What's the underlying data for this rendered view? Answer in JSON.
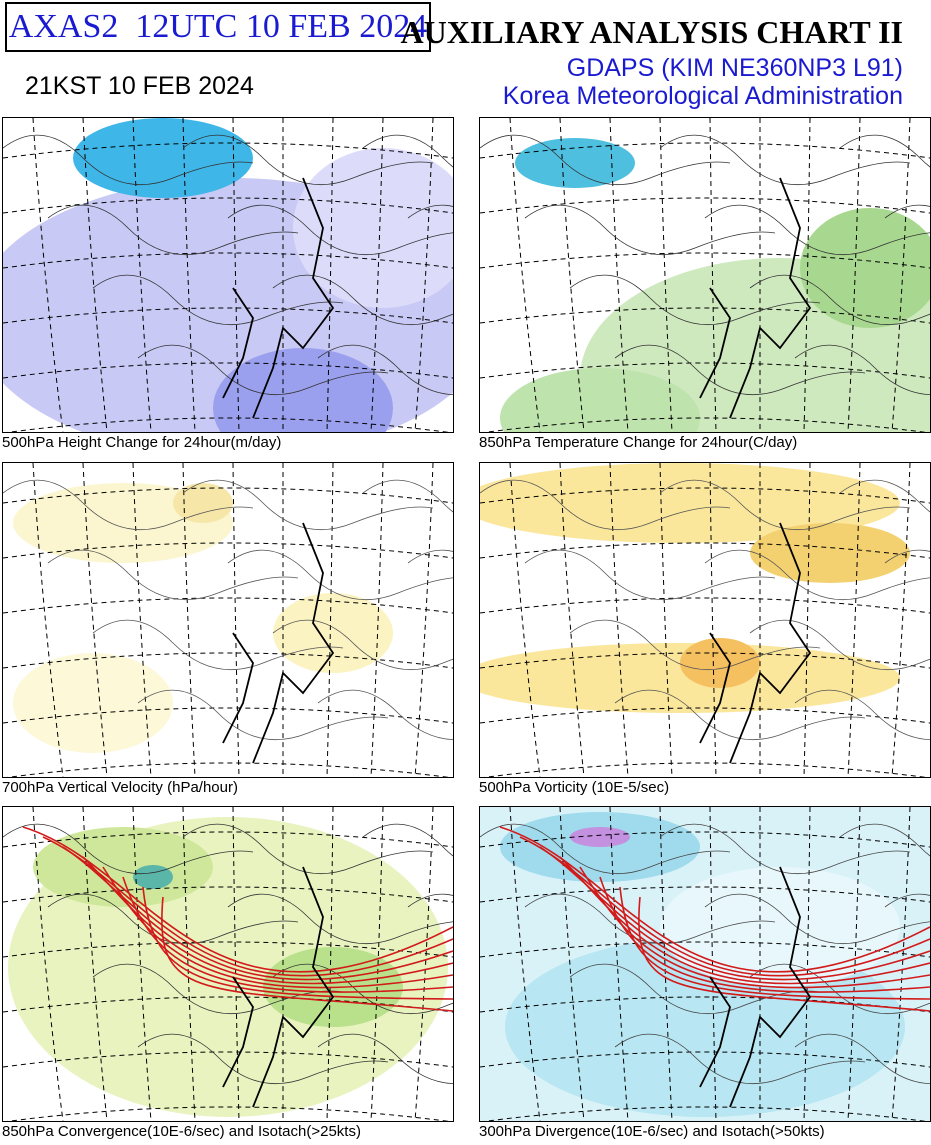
{
  "header": {
    "run_box": "AXAS2  12UTC 10 FEB 2024",
    "title": "AUXILIARY ANALYSIS CHART II",
    "model": "GDAPS (KIM NE360NP3 L91)",
    "agency": "Korea Meteorological Administration",
    "local_time": "21KST 10 FEB 2024"
  },
  "panels": [
    {
      "caption": "500hPa Height Change for 24hour(m/day)"
    },
    {
      "caption": "850hPa Temperature Change for 24hour(C/day)"
    },
    {
      "caption": "700hPa Vertical Velocity (hPa/hour)"
    },
    {
      "caption": "500hPa Vorticity (10E-5/sec)"
    },
    {
      "caption": "850hPa Convergence(10E-6/sec) and Isotach(>25kts)"
    },
    {
      "caption": "300hPa Divergence(10E-6/sec) and Isotach(>50kts)"
    }
  ]
}
